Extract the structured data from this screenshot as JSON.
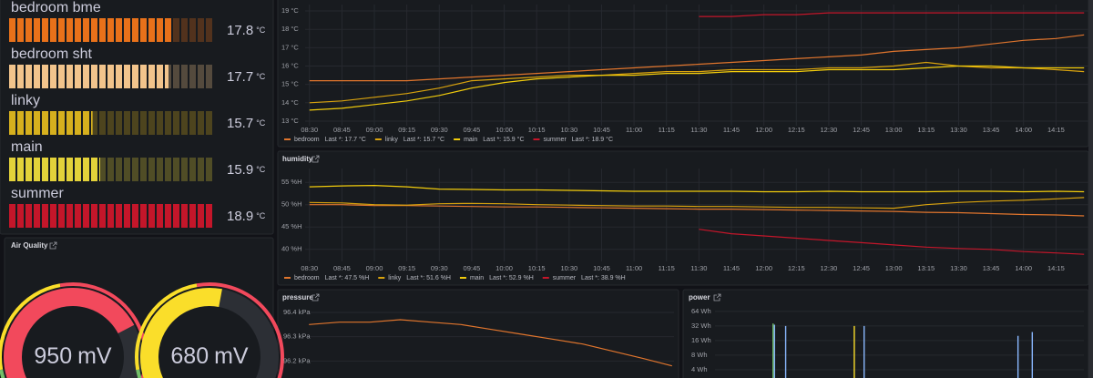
{
  "chart_data": [
    {
      "type": "bargauge",
      "categories": [
        "bedroom bme",
        "bedroom sht",
        "linky",
        "main",
        "summer"
      ],
      "values": [
        17.8,
        17.7,
        15.7,
        15.9,
        18.9
      ],
      "unit": "°C",
      "colors": [
        "#e8711a",
        "#f2c48c",
        "#d6b01e",
        "#e3d23a",
        "#c4162a"
      ],
      "xlim": [
        13.5,
        18.9
      ]
    },
    {
      "type": "gauge",
      "title": "Air Quality",
      "values": [
        950,
        680
      ],
      "unit": "mV",
      "colors": [
        "#f2495c",
        "#fade2a"
      ],
      "ylim": [
        0,
        1250
      ]
    },
    {
      "type": "line",
      "x": [
        "08:30",
        "08:45",
        "09:00",
        "09:15",
        "09:30",
        "09:45",
        "10:00",
        "10:15",
        "10:30",
        "10:45",
        "11:00",
        "11:15",
        "11:30",
        "11:45",
        "12:00",
        "12:15",
        "12:30",
        "12:45",
        "13:00",
        "13:15",
        "13:30",
        "13:45",
        "14:00",
        "14:15",
        "14:28"
      ],
      "series": [
        {
          "name": "bedroom",
          "legend": "Last *: 17.7 °C",
          "color": "#e0752d",
          "values": [
            15.2,
            15.2,
            15.2,
            15.2,
            15.3,
            15.4,
            15.5,
            15.6,
            15.7,
            15.8,
            15.9,
            16.0,
            16.1,
            16.2,
            16.3,
            16.4,
            16.5,
            16.6,
            16.8,
            16.9,
            17.0,
            17.2,
            17.4,
            17.5,
            17.7
          ]
        },
        {
          "name": "linky",
          "legend": "Last *: 15.7 °C",
          "color": "#d8a20e",
          "values": [
            14.0,
            14.1,
            14.3,
            14.5,
            14.8,
            15.2,
            15.3,
            15.4,
            15.5,
            15.5,
            15.6,
            15.7,
            15.7,
            15.8,
            15.8,
            15.8,
            15.9,
            15.9,
            16.0,
            16.2,
            16.0,
            15.9,
            15.9,
            15.8,
            15.7
          ]
        },
        {
          "name": "main",
          "legend": "Last *: 15.9 °C",
          "color": "#f2cc0c",
          "values": [
            13.6,
            13.7,
            13.9,
            14.1,
            14.4,
            14.8,
            15.1,
            15.3,
            15.4,
            15.5,
            15.5,
            15.6,
            15.6,
            15.7,
            15.7,
            15.7,
            15.8,
            15.8,
            15.8,
            15.9,
            16.0,
            16.0,
            15.9,
            15.9,
            15.9
          ]
        },
        {
          "name": "summer",
          "legend": "Last *: 18.9 °C",
          "color": "#c4162a",
          "values": [
            null,
            null,
            null,
            null,
            null,
            null,
            null,
            null,
            null,
            null,
            null,
            null,
            18.7,
            18.7,
            18.8,
            18.8,
            18.9,
            18.9,
            18.9,
            18.9,
            18.9,
            18.9,
            18.9,
            18.9,
            18.9
          ]
        }
      ],
      "xlim": [
        "08:28",
        "14:30"
      ],
      "xticks": [
        "08:30",
        "08:45",
        "09:00",
        "09:15",
        "09:30",
        "09:45",
        "10:00",
        "10:15",
        "10:30",
        "10:45",
        "11:00",
        "11:15",
        "11:30",
        "11:45",
        "12:00",
        "12:15",
        "12:30",
        "12:45",
        "13:00",
        "13:15",
        "13:30",
        "13:45",
        "14:00",
        "14:15"
      ],
      "ylim": [
        12.75,
        19.35
      ],
      "yticks": [
        {
          "value": 13,
          "label": "13 °C"
        },
        {
          "value": 14,
          "label": "14 °C"
        },
        {
          "value": 15,
          "label": "15 °C"
        },
        {
          "value": 16,
          "label": "16 °C"
        },
        {
          "value": 17,
          "label": "17 °C"
        },
        {
          "value": 18,
          "label": "18 °C"
        },
        {
          "value": 19,
          "label": "19 °C"
        }
      ],
      "grid": true
    },
    {
      "type": "line",
      "title": "humidity",
      "x": [
        "08:30",
        "08:45",
        "09:00",
        "09:15",
        "09:30",
        "09:45",
        "10:00",
        "10:15",
        "10:30",
        "10:45",
        "11:00",
        "11:15",
        "11:30",
        "11:45",
        "12:00",
        "12:15",
        "12:30",
        "12:45",
        "13:00",
        "13:15",
        "13:30",
        "13:45",
        "14:00",
        "14:15",
        "14:28"
      ],
      "series": [
        {
          "name": "bedroom",
          "legend": "Last *: 47.5 %H",
          "color": "#e0752d",
          "values": [
            50.0,
            50.0,
            49.8,
            49.8,
            49.7,
            49.6,
            49.5,
            49.5,
            49.4,
            49.3,
            49.2,
            49.1,
            49.0,
            49.0,
            48.9,
            48.8,
            48.7,
            48.6,
            48.5,
            48.3,
            48.2,
            48.0,
            47.8,
            47.7,
            47.5
          ]
        },
        {
          "name": "linky",
          "legend": "Last *: 51.6 %H",
          "color": "#d8a20e",
          "values": [
            50.5,
            50.4,
            50.0,
            49.9,
            50.2,
            50.3,
            50.2,
            50.0,
            49.9,
            49.8,
            49.7,
            49.7,
            49.6,
            49.6,
            49.5,
            49.4,
            49.4,
            49.3,
            49.2,
            50.0,
            50.5,
            50.8,
            51.0,
            51.3,
            51.6
          ]
        },
        {
          "name": "main",
          "legend": "Last *: 52.9 %H",
          "color": "#f2cc0c",
          "values": [
            54.0,
            54.2,
            54.3,
            54.0,
            53.5,
            53.4,
            53.3,
            53.3,
            53.2,
            53.1,
            53.0,
            53.0,
            53.0,
            53.0,
            52.9,
            52.9,
            53.0,
            52.9,
            52.9,
            52.9,
            53.0,
            53.0,
            52.9,
            53.0,
            52.9
          ]
        },
        {
          "name": "summer",
          "legend": "Last *: 38.9 %H",
          "color": "#c4162a",
          "values": [
            null,
            null,
            null,
            null,
            null,
            null,
            null,
            null,
            null,
            null,
            null,
            null,
            44.5,
            43.5,
            43.0,
            42.5,
            42.0,
            41.5,
            41.0,
            40.5,
            40.2,
            40.0,
            39.5,
            39.2,
            38.9
          ]
        }
      ],
      "xlim": [
        "08:28",
        "14:30"
      ],
      "xticks": [
        "08:30",
        "08:45",
        "09:00",
        "09:15",
        "09:30",
        "09:45",
        "10:00",
        "10:15",
        "10:30",
        "10:45",
        "11:00",
        "11:15",
        "11:30",
        "11:45",
        "12:00",
        "12:15",
        "12:30",
        "12:45",
        "13:00",
        "13:15",
        "13:30",
        "13:45",
        "14:00",
        "14:15"
      ],
      "ylim": [
        37.3,
        58.1
      ],
      "yticks": [
        {
          "value": 40,
          "label": "40 %H"
        },
        {
          "value": 45,
          "label": "45 %H"
        },
        {
          "value": 50,
          "label": "50 %H"
        },
        {
          "value": 55,
          "label": "55 %H"
        }
      ],
      "grid": true
    },
    {
      "type": "line",
      "title": "pressure",
      "x": [
        "08:30",
        "09:00",
        "09:30",
        "10:00",
        "10:30",
        "11:00",
        "11:30",
        "12:00",
        "12:30",
        "13:00",
        "13:30",
        "14:00",
        "14:28"
      ],
      "series": [
        {
          "color": "#e0752d",
          "values": [
            96.35,
            96.36,
            96.36,
            96.37,
            96.36,
            96.35,
            96.33,
            96.31,
            96.29,
            96.27,
            96.24,
            96.21,
            96.18
          ]
        }
      ],
      "xlim": [
        "08:28",
        "14:30"
      ],
      "ylim": [
        96.13,
        96.43
      ],
      "yticks": [
        {
          "value": 96.2,
          "label": "96.2 kPa"
        },
        {
          "value": 96.3,
          "label": "96.3 kPa"
        },
        {
          "value": 96.4,
          "label": "96.4 kPa"
        }
      ],
      "grid": true
    },
    {
      "type": "needle",
      "title": "power",
      "series": [
        {
          "color": "#73bf69",
          "x": [
            "09:25"
          ],
          "values": [
            36
          ]
        },
        {
          "color": "#8ab8ff",
          "x": [
            "09:25",
            "09:36",
            "10:53",
            "13:24",
            "13:38"
          ],
          "values": [
            34,
            32,
            32,
            20,
            24
          ]
        },
        {
          "color": "#fade2a",
          "x": [
            "10:42"
          ],
          "values": [
            32
          ]
        }
      ],
      "xlim": [
        "08:28",
        "14:30"
      ],
      "ylim": [
        2.7,
        107
      ],
      "log_base": 2,
      "yticks": [
        {
          "value": 4,
          "label": "4 Wh"
        },
        {
          "value": 8,
          "label": "8 Wh"
        },
        {
          "value": 16,
          "label": "16 Wh"
        },
        {
          "value": 32,
          "label": "32 Wh"
        },
        {
          "value": 64,
          "label": "64 Wh"
        }
      ],
      "grid": true
    }
  ]
}
